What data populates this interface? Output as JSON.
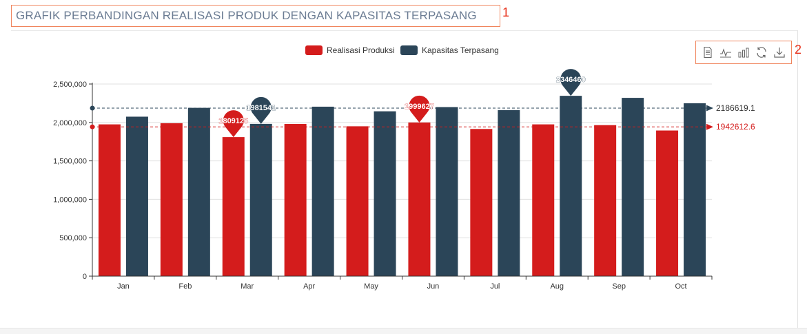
{
  "title": {
    "text": "GRAFIK PERBANDINGAN REALISASI PRODUK DENGAN KAPASITAS TERPASANG",
    "annotation_number": "1"
  },
  "toolbox": {
    "annotation_number": "2",
    "items": [
      {
        "name": "data-view",
        "icon": "document-icon"
      },
      {
        "name": "line",
        "icon": "line-chart-icon"
      },
      {
        "name": "bar",
        "icon": "bar-chart-icon"
      },
      {
        "name": "restore",
        "icon": "refresh-icon"
      },
      {
        "name": "save-image",
        "icon": "download-icon"
      }
    ]
  },
  "chart_data": {
    "type": "bar",
    "categories": [
      "Jan",
      "Feb",
      "Mar",
      "Apr",
      "May",
      "Jun",
      "Jul",
      "Aug",
      "Sep",
      "Oct"
    ],
    "series": [
      {
        "name": "Realisasi Produksi",
        "color": "#d41c1c",
        "values": [
          1975000,
          1990000,
          1809125,
          1980000,
          1950000,
          1999627,
          1915000,
          1975000,
          1965000,
          1895000
        ],
        "markpoints": [
          {
            "category": "Mar",
            "value": 1809125,
            "label": "1809125"
          },
          {
            "category": "Jun",
            "value": 1999627,
            "label": "1999627"
          }
        ],
        "markline": {
          "value": 1942612.6,
          "label": "1942612.6"
        }
      },
      {
        "name": "Kapasitas Terpasang",
        "color": "#2b4558",
        "values": [
          2075000,
          2190000,
          1981541,
          2205000,
          2145000,
          2200000,
          2160000,
          2346460,
          2320000,
          2250000
        ],
        "markpoints": [
          {
            "category": "Mar",
            "value": 1981541,
            "label": "1981541"
          },
          {
            "category": "Aug",
            "value": 2346460,
            "label": "2346460"
          }
        ],
        "markline": {
          "value": 2186619.1,
          "label": "2186619.1"
        }
      }
    ],
    "ylim": [
      0,
      2500000
    ],
    "yticks": [
      0,
      500000,
      1000000,
      1500000,
      2000000,
      2500000
    ],
    "ytick_labels": [
      "0",
      "500,000",
      "1,000,000",
      "1,500,000",
      "2,000,000",
      "2,500,000"
    ],
    "grid": true,
    "legend_position": "top-center"
  }
}
